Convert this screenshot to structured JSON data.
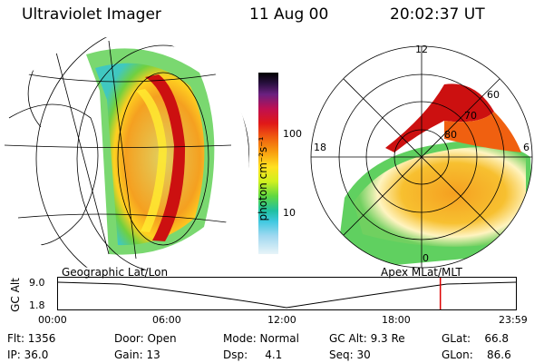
{
  "header": {
    "instrument": "Ultraviolet Imager",
    "date": "11 Aug 00",
    "time": "20:02:37 UT"
  },
  "colorbar": {
    "unit_label": "photon cm⁻²s⁻¹",
    "ticks": [
      "100",
      "10"
    ]
  },
  "polar_plot": {
    "mlt_labels": [
      "12",
      "18",
      "6",
      "0"
    ],
    "mlat_labels": [
      "60",
      "70",
      "80"
    ]
  },
  "altitude_panel": {
    "left_title": "Geographic Lat/Lon",
    "right_title": "Apex  MLat/MLT",
    "y_label": "GC Alt",
    "y_ticks": [
      "9.0",
      "1.8"
    ],
    "x_ticks": [
      "00:00",
      "06:00",
      "12:00",
      "18:00",
      "23:59"
    ],
    "current_marker_hours": 20.04,
    "marker_color": "#dd0000"
  },
  "info": {
    "flt": "Flt: 1356",
    "ip": "IP: 36.0",
    "door": "Door: Open",
    "gain": "Gain: 13",
    "mode": "Mode: Normal",
    "dsp": "Dsp:     4.1",
    "gc_alt": "GC Alt: 9.3 Re",
    "seq": "Seq: 30",
    "glat": "GLat:    66.8",
    "glon": "GLon:    86.6"
  }
}
